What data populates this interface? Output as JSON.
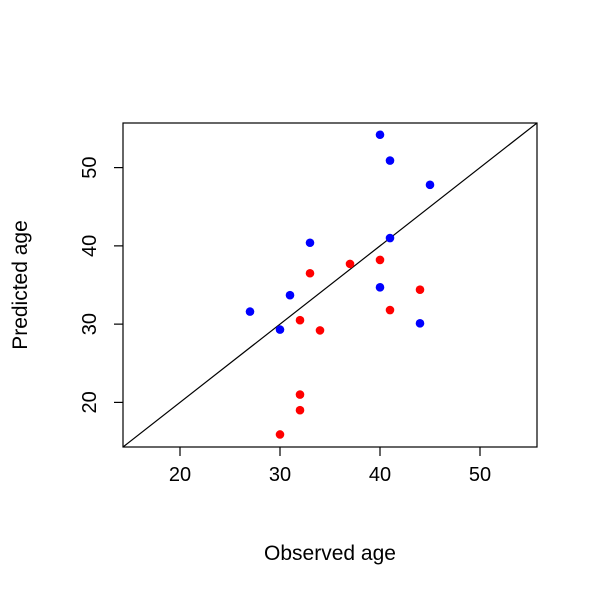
{
  "chart_data": {
    "type": "scatter",
    "title": "",
    "xlabel": "Observed age",
    "ylabel": "Predicted age",
    "xlim": [
      14.3,
      55.7
    ],
    "ylim": [
      14.3,
      55.7
    ],
    "xticks": [
      20,
      30,
      40,
      50
    ],
    "yticks": [
      20,
      30,
      40,
      50
    ],
    "grid": false,
    "legend": "none",
    "reference_line": {
      "type": "identity",
      "slope": 1,
      "intercept": 0,
      "color": "#000000"
    },
    "series": [
      {
        "name": "blue points",
        "color": "#0000ff",
        "points": [
          {
            "x": 40,
            "y": 54.2
          },
          {
            "x": 41,
            "y": 50.9
          },
          {
            "x": 45,
            "y": 47.8
          },
          {
            "x": 33,
            "y": 40.4
          },
          {
            "x": 41,
            "y": 41.0
          },
          {
            "x": 40,
            "y": 34.7
          },
          {
            "x": 31,
            "y": 33.7
          },
          {
            "x": 27,
            "y": 31.6
          },
          {
            "x": 30,
            "y": 29.3
          },
          {
            "x": 44,
            "y": 30.1
          }
        ]
      },
      {
        "name": "red points",
        "color": "#ff0000",
        "points": [
          {
            "x": 40,
            "y": 38.2
          },
          {
            "x": 37,
            "y": 37.7
          },
          {
            "x": 33,
            "y": 36.5
          },
          {
            "x": 44,
            "y": 34.4
          },
          {
            "x": 41,
            "y": 31.8
          },
          {
            "x": 32,
            "y": 30.5
          },
          {
            "x": 34,
            "y": 29.2
          },
          {
            "x": 32,
            "y": 21.0
          },
          {
            "x": 32,
            "y": 19.0
          },
          {
            "x": 30,
            "y": 15.9
          }
        ]
      }
    ]
  }
}
